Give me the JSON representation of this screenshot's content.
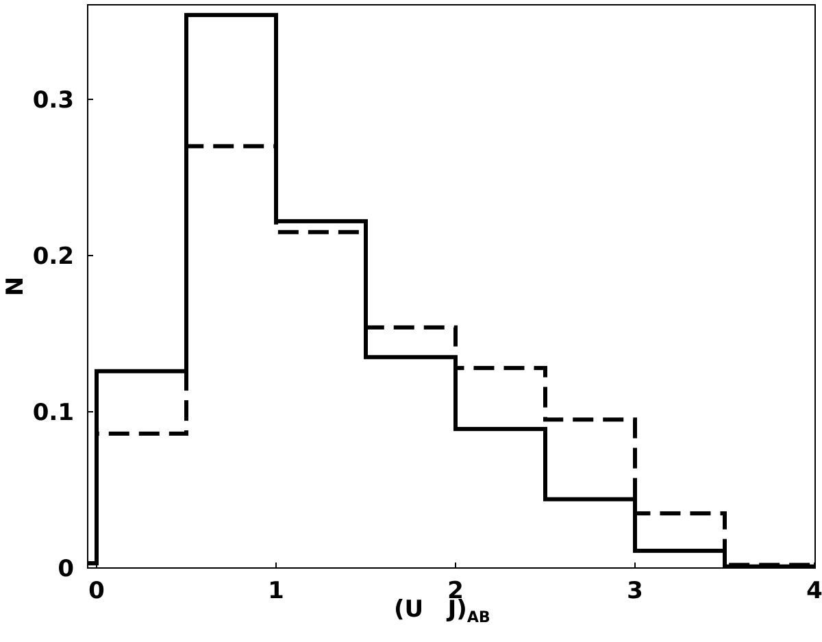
{
  "chart_data": {
    "type": "histogram",
    "xlabel": {
      "main": "(U   J)",
      "subscript": "AB"
    },
    "ylabel": "N",
    "xlim": [
      -0.05,
      4.0
    ],
    "ylim": [
      0,
      0.355
    ],
    "x_ticks": [
      0,
      1,
      2,
      3,
      4
    ],
    "x_tick_labels": [
      "0",
      "1",
      "2",
      "3",
      "4"
    ],
    "y_ticks": [
      0,
      0.1,
      0.2,
      0.3
    ],
    "y_tick_labels": [
      "0",
      "0.1",
      "0.2",
      "0.3"
    ],
    "bin_edges": [
      -0.05,
      0,
      0.5,
      1.0,
      1.5,
      2.0,
      2.5,
      3.0,
      3.5,
      4.0
    ],
    "series": [
      {
        "style": "solid",
        "values": [
          0.003,
          0.126,
          0.354,
          0.222,
          0.135,
          0.089,
          0.044,
          0.011,
          0.001
        ]
      },
      {
        "style": "dashed",
        "values": [
          0.003,
          0.086,
          0.27,
          0.215,
          0.154,
          0.128,
          0.095,
          0.035,
          0.002
        ]
      }
    ],
    "grid": false,
    "legend": "none"
  }
}
